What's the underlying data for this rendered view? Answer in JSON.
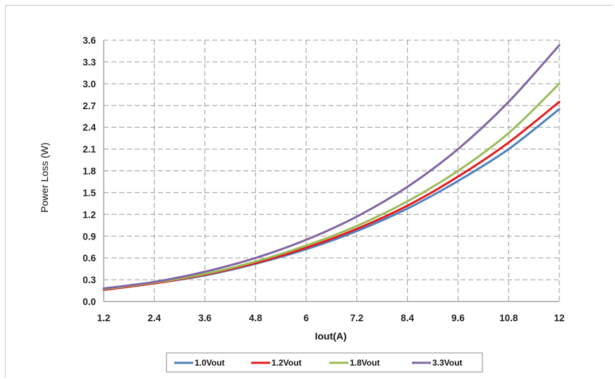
{
  "chart_data": {
    "type": "line",
    "title": "",
    "xlabel": "Iout(A)",
    "ylabel": "Power Loss (W)",
    "xlim": [
      1.2,
      12
    ],
    "ylim": [
      0,
      3.6
    ],
    "grid": true,
    "legend_position": "bottom",
    "x_ticks": [
      "1.2",
      "2.4",
      "3.6",
      "4.8",
      "6",
      "7.2",
      "8.4",
      "9.6",
      "10.8",
      "12"
    ],
    "y_ticks": [
      "0.0",
      "0.3",
      "0.6",
      "0.9",
      "1.2",
      "1.5",
      "1.8",
      "2.1",
      "2.4",
      "2.7",
      "3.0",
      "3.3",
      "3.6"
    ],
    "x": [
      1.2,
      2.4,
      3.6,
      4.8,
      6,
      7.2,
      8.4,
      9.6,
      10.8,
      12
    ],
    "series": [
      {
        "name": "1.0Vout",
        "color": "#4f81bd",
        "values": [
          0.16,
          0.25,
          0.36,
          0.52,
          0.72,
          0.97,
          1.28,
          1.66,
          2.1,
          2.65
        ]
      },
      {
        "name": "1.2Vout",
        "color": "#e41a1c",
        "values": [
          0.16,
          0.25,
          0.37,
          0.53,
          0.74,
          1.0,
          1.32,
          1.72,
          2.19,
          2.75
        ]
      },
      {
        "name": "1.8Vout",
        "color": "#9bbb59",
        "values": [
          0.17,
          0.26,
          0.38,
          0.55,
          0.77,
          1.04,
          1.38,
          1.8,
          2.32,
          3.0
        ]
      },
      {
        "name": "3.3Vout",
        "color": "#8064a2",
        "values": [
          0.18,
          0.27,
          0.41,
          0.6,
          0.85,
          1.17,
          1.58,
          2.1,
          2.75,
          3.53
        ]
      }
    ]
  }
}
